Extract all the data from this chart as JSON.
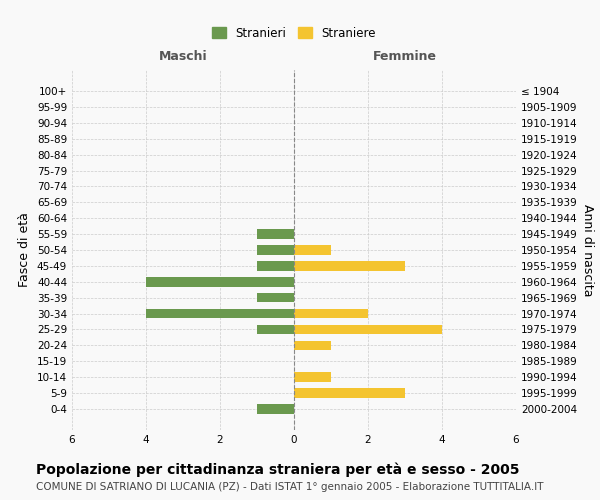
{
  "age_groups": [
    "0-4",
    "5-9",
    "10-14",
    "15-19",
    "20-24",
    "25-29",
    "30-34",
    "35-39",
    "40-44",
    "45-49",
    "50-54",
    "55-59",
    "60-64",
    "65-69",
    "70-74",
    "75-79",
    "80-84",
    "85-89",
    "90-94",
    "95-99",
    "100+"
  ],
  "birth_years": [
    "2000-2004",
    "1995-1999",
    "1990-1994",
    "1985-1989",
    "1980-1984",
    "1975-1979",
    "1970-1974",
    "1965-1969",
    "1960-1964",
    "1955-1959",
    "1950-1954",
    "1945-1949",
    "1940-1944",
    "1935-1939",
    "1930-1934",
    "1925-1929",
    "1920-1924",
    "1915-1919",
    "1910-1914",
    "1905-1909",
    "≤ 1904"
  ],
  "males": [
    1,
    0,
    0,
    0,
    0,
    1,
    4,
    1,
    4,
    1,
    1,
    1,
    0,
    0,
    0,
    0,
    0,
    0,
    0,
    0,
    0
  ],
  "females": [
    0,
    3,
    1,
    0,
    1,
    4,
    2,
    0,
    0,
    3,
    1,
    0,
    0,
    0,
    0,
    0,
    0,
    0,
    0,
    0,
    0
  ],
  "male_color": "#6a994e",
  "female_color": "#f4c430",
  "xlim": 6,
  "title": "Popolazione per cittadinanza straniera per età e sesso - 2005",
  "subtitle": "COMUNE DI SATRIANO DI LUCANIA (PZ) - Dati ISTAT 1° gennaio 2005 - Elaborazione TUTTITALIA.IT",
  "left_label": "Maschi",
  "right_label": "Femmine",
  "ylabel_left": "Fasce di età",
  "ylabel_right": "Anni di nascita",
  "legend_male": "Stranieri",
  "legend_female": "Straniere",
  "background_color": "#f9f9f9",
  "grid_color": "#cccccc",
  "title_fontsize": 10,
  "subtitle_fontsize": 7.5,
  "tick_fontsize": 7.5,
  "label_fontsize": 9
}
